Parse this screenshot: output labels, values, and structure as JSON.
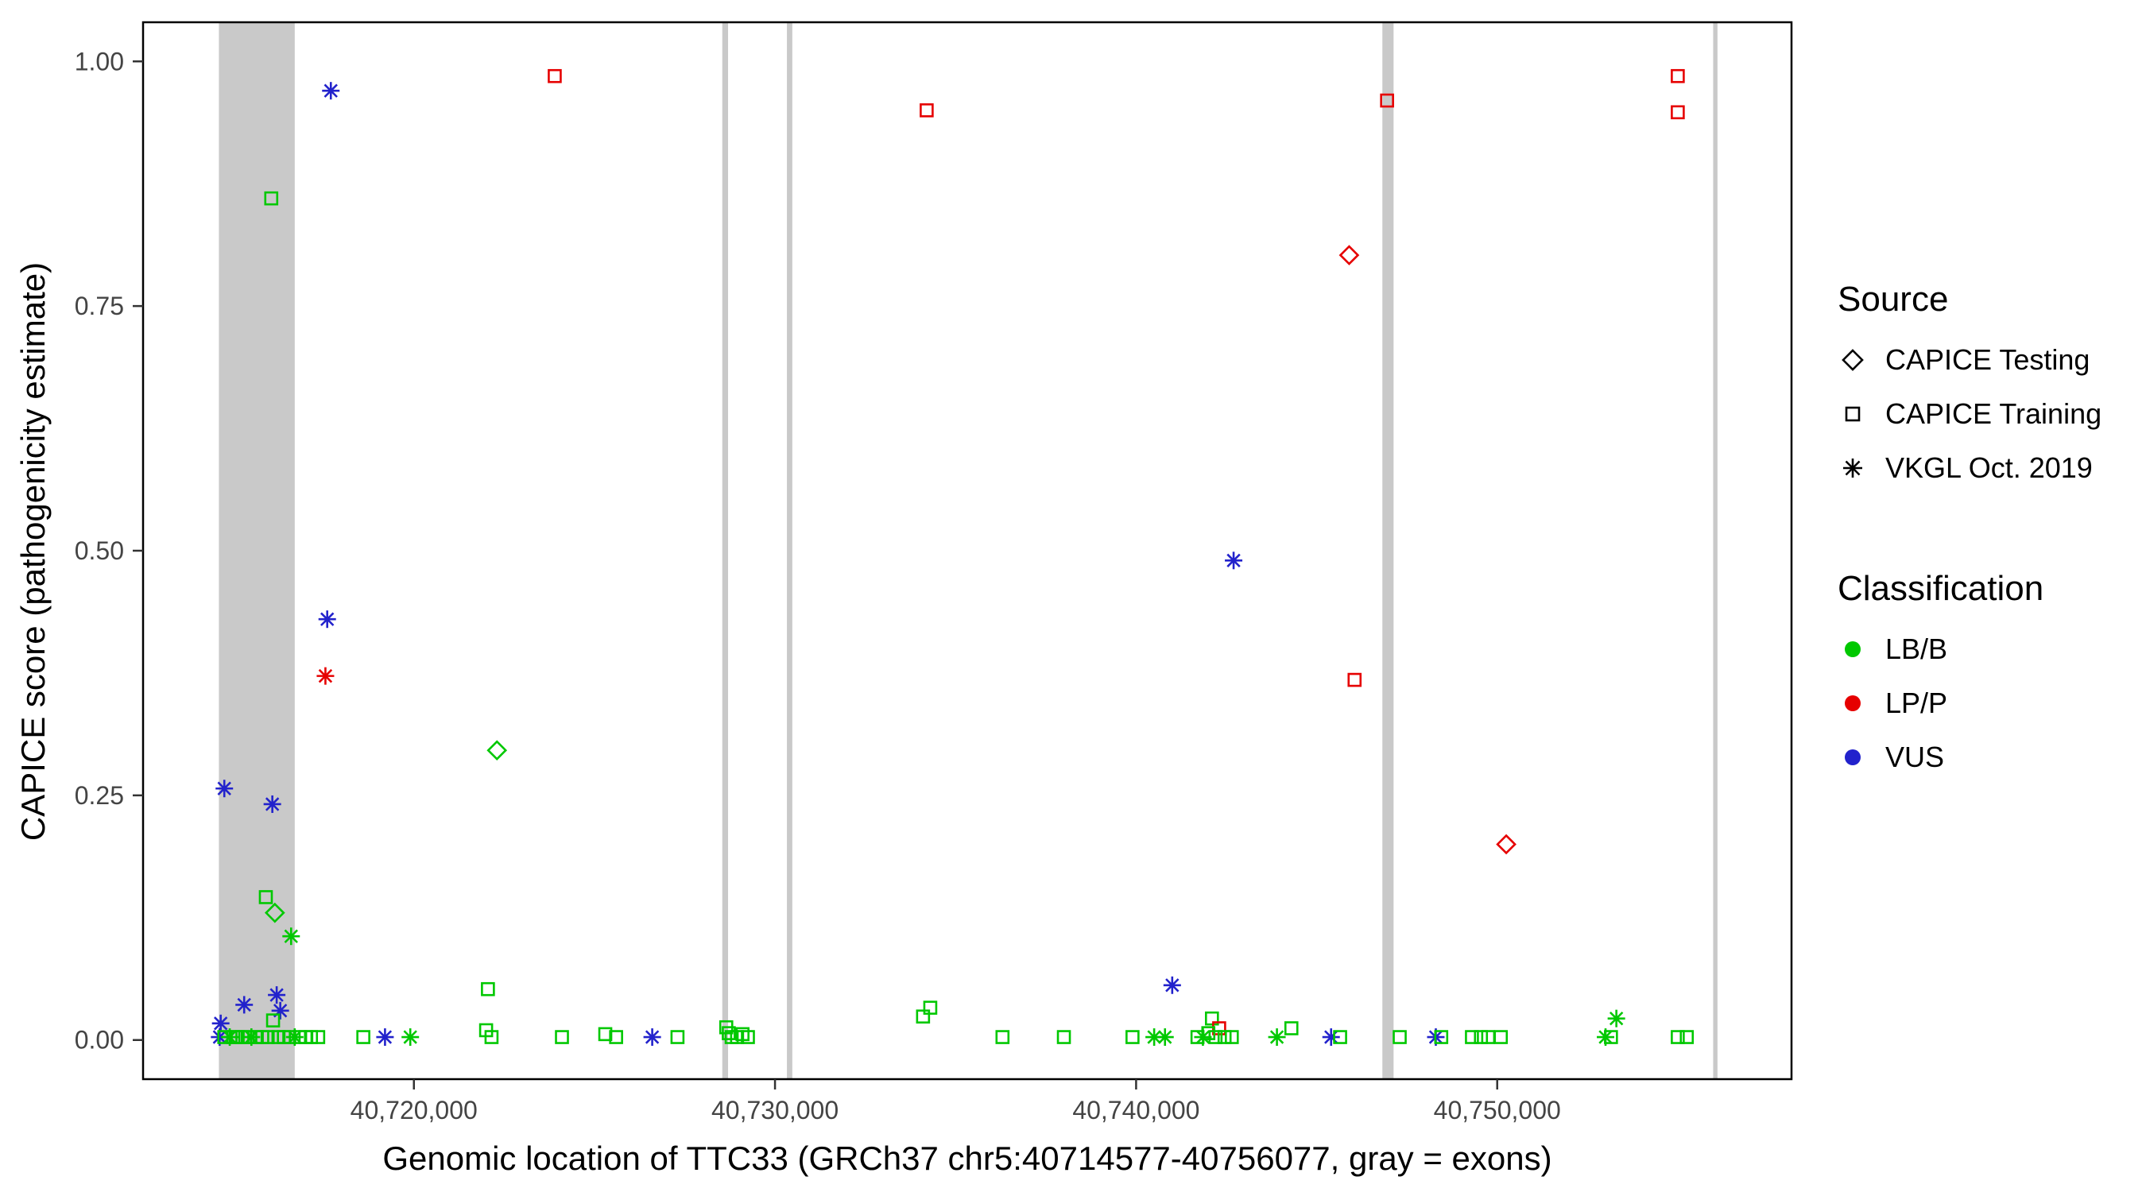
{
  "chart_data": {
    "type": "scatter",
    "xlabel": "Genomic location of TTC33 (GRCh37 chr5:40714577-40756077, gray = exons)",
    "ylabel": "CAPICE score (pathogenicity estimate)",
    "xlim": [
      40712500,
      40758150
    ],
    "ylim": [
      -0.04,
      1.04
    ],
    "x_ticks": [
      {
        "value": 40720000,
        "label": "40,720,000"
      },
      {
        "value": 40730000,
        "label": "40,730,000"
      },
      {
        "value": 40740000,
        "label": "40,740,000"
      },
      {
        "value": 40750000,
        "label": "40,750,000"
      }
    ],
    "y_ticks": [
      {
        "value": 0.0,
        "label": "0.00"
      },
      {
        "value": 0.25,
        "label": "0.25"
      },
      {
        "value": 0.5,
        "label": "0.50"
      },
      {
        "value": 0.75,
        "label": "0.75"
      },
      {
        "value": 1.0,
        "label": "1.00"
      }
    ],
    "colors": {
      "exon_gray": "#C9C9C9",
      "panel_border": "#000000",
      "axis_text": "#444444",
      "background": "#FFFFFF"
    },
    "exons": [
      {
        "start": 40714600,
        "end": 40716700
      },
      {
        "start": 40728540,
        "end": 40728700
      },
      {
        "start": 40730330,
        "end": 40730480
      },
      {
        "start": 40746820,
        "end": 40747130
      },
      {
        "start": 40755980,
        "end": 40756100
      }
    ],
    "legend": {
      "source": {
        "title": "Source",
        "items": [
          {
            "key": "testing",
            "label": "CAPICE Testing",
            "shape": "diamond"
          },
          {
            "key": "training",
            "label": "CAPICE Training",
            "shape": "square"
          },
          {
            "key": "vkgl",
            "label": "VKGL Oct. 2019",
            "shape": "asterisk"
          }
        ]
      },
      "classification": {
        "title": "Classification",
        "items": [
          {
            "key": "lbb",
            "label": "LB/B",
            "color": "#00C800"
          },
          {
            "key": "lpp",
            "label": "LP/P",
            "color": "#E60000"
          },
          {
            "key": "vus",
            "label": "VUS",
            "color": "#2222CC"
          }
        ]
      }
    },
    "points": [
      {
        "x": 40717700,
        "y": 0.97,
        "s": "vkgl",
        "c": "vus"
      },
      {
        "x": 40723900,
        "y": 0.985,
        "s": "training",
        "c": "lpp"
      },
      {
        "x": 40734200,
        "y": 0.95,
        "s": "training",
        "c": "lpp"
      },
      {
        "x": 40746950,
        "y": 0.96,
        "s": "training",
        "c": "lpp"
      },
      {
        "x": 40755000,
        "y": 0.985,
        "s": "training",
        "c": "lpp"
      },
      {
        "x": 40755000,
        "y": 0.948,
        "s": "training",
        "c": "lpp"
      },
      {
        "x": 40745900,
        "y": 0.802,
        "s": "testing",
        "c": "lpp"
      },
      {
        "x": 40716050,
        "y": 0.86,
        "s": "training",
        "c": "lbb"
      },
      {
        "x": 40717600,
        "y": 0.43,
        "s": "vkgl",
        "c": "vus"
      },
      {
        "x": 40717550,
        "y": 0.372,
        "s": "vkgl",
        "c": "lpp"
      },
      {
        "x": 40742700,
        "y": 0.49,
        "s": "vkgl",
        "c": "vus"
      },
      {
        "x": 40746050,
        "y": 0.368,
        "s": "training",
        "c": "lpp"
      },
      {
        "x": 40722300,
        "y": 0.296,
        "s": "testing",
        "c": "lbb"
      },
      {
        "x": 40714750,
        "y": 0.257,
        "s": "vkgl",
        "c": "vus"
      },
      {
        "x": 40716080,
        "y": 0.241,
        "s": "vkgl",
        "c": "vus"
      },
      {
        "x": 40750250,
        "y": 0.2,
        "s": "testing",
        "c": "lpp"
      },
      {
        "x": 40715900,
        "y": 0.146,
        "s": "training",
        "c": "lbb"
      },
      {
        "x": 40716150,
        "y": 0.13,
        "s": "testing",
        "c": "lbb"
      },
      {
        "x": 40716600,
        "y": 0.106,
        "s": "vkgl",
        "c": "lbb"
      },
      {
        "x": 40722050,
        "y": 0.052,
        "s": "training",
        "c": "lbb"
      },
      {
        "x": 40741000,
        "y": 0.056,
        "s": "vkgl",
        "c": "vus"
      },
      {
        "x": 40715300,
        "y": 0.036,
        "s": "vkgl",
        "c": "vus"
      },
      {
        "x": 40716200,
        "y": 0.046,
        "s": "vkgl",
        "c": "vus"
      },
      {
        "x": 40716300,
        "y": 0.03,
        "s": "vkgl",
        "c": "vus"
      },
      {
        "x": 40714650,
        "y": 0.017,
        "s": "vkgl",
        "c": "vus"
      },
      {
        "x": 40734300,
        "y": 0.033,
        "s": "training",
        "c": "lbb"
      },
      {
        "x": 40734100,
        "y": 0.024,
        "s": "training",
        "c": "lbb"
      },
      {
        "x": 40742100,
        "y": 0.022,
        "s": "training",
        "c": "lbb"
      },
      {
        "x": 40742300,
        "y": 0.012,
        "s": "training",
        "c": "lpp"
      },
      {
        "x": 40744300,
        "y": 0.012,
        "s": "training",
        "c": "lbb"
      },
      {
        "x": 40753300,
        "y": 0.022,
        "s": "vkgl",
        "c": "lbb"
      },
      {
        "x": 40714620,
        "y": 0.003,
        "s": "vkgl",
        "c": "vus"
      },
      {
        "x": 40714750,
        "y": 0.003,
        "s": "training",
        "c": "lbb"
      },
      {
        "x": 40714900,
        "y": 0.003,
        "s": "vkgl",
        "c": "lbb"
      },
      {
        "x": 40715000,
        "y": 0.003,
        "s": "training",
        "c": "lbb"
      },
      {
        "x": 40715120,
        "y": 0.003,
        "s": "training",
        "c": "lbb"
      },
      {
        "x": 40715250,
        "y": 0.003,
        "s": "training",
        "c": "lbb"
      },
      {
        "x": 40715400,
        "y": 0.003,
        "s": "training",
        "c": "lbb"
      },
      {
        "x": 40715500,
        "y": 0.003,
        "s": "vkgl",
        "c": "lbb"
      },
      {
        "x": 40715650,
        "y": 0.003,
        "s": "training",
        "c": "lbb"
      },
      {
        "x": 40715800,
        "y": 0.003,
        "s": "training",
        "c": "lbb"
      },
      {
        "x": 40715950,
        "y": 0.003,
        "s": "training",
        "c": "lbb"
      },
      {
        "x": 40716100,
        "y": 0.02,
        "s": "training",
        "c": "lbb"
      },
      {
        "x": 40716250,
        "y": 0.003,
        "s": "training",
        "c": "lbb"
      },
      {
        "x": 40716400,
        "y": 0.003,
        "s": "training",
        "c": "lbb"
      },
      {
        "x": 40716550,
        "y": 0.003,
        "s": "training",
        "c": "lbb"
      },
      {
        "x": 40716700,
        "y": 0.003,
        "s": "vkgl",
        "c": "lbb"
      },
      {
        "x": 40716850,
        "y": 0.003,
        "s": "training",
        "c": "lbb"
      },
      {
        "x": 40717000,
        "y": 0.003,
        "s": "training",
        "c": "lbb"
      },
      {
        "x": 40717150,
        "y": 0.003,
        "s": "training",
        "c": "lbb"
      },
      {
        "x": 40717350,
        "y": 0.003,
        "s": "training",
        "c": "lbb"
      },
      {
        "x": 40718600,
        "y": 0.003,
        "s": "training",
        "c": "lbb"
      },
      {
        "x": 40719200,
        "y": 0.003,
        "s": "vkgl",
        "c": "vus"
      },
      {
        "x": 40719900,
        "y": 0.003,
        "s": "vkgl",
        "c": "lbb"
      },
      {
        "x": 40722000,
        "y": 0.01,
        "s": "training",
        "c": "lbb"
      },
      {
        "x": 40722150,
        "y": 0.003,
        "s": "training",
        "c": "lbb"
      },
      {
        "x": 40724100,
        "y": 0.003,
        "s": "training",
        "c": "lbb"
      },
      {
        "x": 40725300,
        "y": 0.006,
        "s": "training",
        "c": "lbb"
      },
      {
        "x": 40725600,
        "y": 0.003,
        "s": "training",
        "c": "lbb"
      },
      {
        "x": 40726600,
        "y": 0.003,
        "s": "vkgl",
        "c": "vus"
      },
      {
        "x": 40727300,
        "y": 0.003,
        "s": "training",
        "c": "lbb"
      },
      {
        "x": 40728650,
        "y": 0.013,
        "s": "training",
        "c": "lbb"
      },
      {
        "x": 40728720,
        "y": 0.007,
        "s": "training",
        "c": "lbb"
      },
      {
        "x": 40728800,
        "y": 0.003,
        "s": "training",
        "c": "lbb"
      },
      {
        "x": 40728950,
        "y": 0.003,
        "s": "training",
        "c": "lbb"
      },
      {
        "x": 40729100,
        "y": 0.006,
        "s": "training",
        "c": "lbb"
      },
      {
        "x": 40729250,
        "y": 0.003,
        "s": "training",
        "c": "lbb"
      },
      {
        "x": 40736300,
        "y": 0.003,
        "s": "training",
        "c": "lbb"
      },
      {
        "x": 40738000,
        "y": 0.003,
        "s": "training",
        "c": "lbb"
      },
      {
        "x": 40739900,
        "y": 0.003,
        "s": "training",
        "c": "lbb"
      },
      {
        "x": 40740500,
        "y": 0.003,
        "s": "vkgl",
        "c": "lbb"
      },
      {
        "x": 40740800,
        "y": 0.003,
        "s": "vkgl",
        "c": "lbb"
      },
      {
        "x": 40741700,
        "y": 0.003,
        "s": "training",
        "c": "lbb"
      },
      {
        "x": 40741850,
        "y": 0.003,
        "s": "vkgl",
        "c": "lbb"
      },
      {
        "x": 40742000,
        "y": 0.007,
        "s": "training",
        "c": "lbb"
      },
      {
        "x": 40742200,
        "y": 0.003,
        "s": "training",
        "c": "lbb"
      },
      {
        "x": 40742450,
        "y": 0.003,
        "s": "training",
        "c": "lbb"
      },
      {
        "x": 40742650,
        "y": 0.003,
        "s": "training",
        "c": "lbb"
      },
      {
        "x": 40743900,
        "y": 0.003,
        "s": "vkgl",
        "c": "lbb"
      },
      {
        "x": 40745400,
        "y": 0.003,
        "s": "vkgl",
        "c": "vus"
      },
      {
        "x": 40745650,
        "y": 0.003,
        "s": "training",
        "c": "lbb"
      },
      {
        "x": 40747300,
        "y": 0.003,
        "s": "training",
        "c": "lbb"
      },
      {
        "x": 40748300,
        "y": 0.003,
        "s": "vkgl",
        "c": "vus"
      },
      {
        "x": 40748450,
        "y": 0.003,
        "s": "training",
        "c": "lbb"
      },
      {
        "x": 40749300,
        "y": 0.003,
        "s": "training",
        "c": "lbb"
      },
      {
        "x": 40749550,
        "y": 0.003,
        "s": "training",
        "c": "lbb"
      },
      {
        "x": 40749750,
        "y": 0.003,
        "s": "training",
        "c": "lbb"
      },
      {
        "x": 40750100,
        "y": 0.003,
        "s": "training",
        "c": "lbb"
      },
      {
        "x": 40753000,
        "y": 0.003,
        "s": "vkgl",
        "c": "lbb"
      },
      {
        "x": 40753150,
        "y": 0.003,
        "s": "training",
        "c": "lbb"
      },
      {
        "x": 40755000,
        "y": 0.003,
        "s": "training",
        "c": "lbb"
      },
      {
        "x": 40755250,
        "y": 0.003,
        "s": "training",
        "c": "lbb"
      }
    ]
  }
}
